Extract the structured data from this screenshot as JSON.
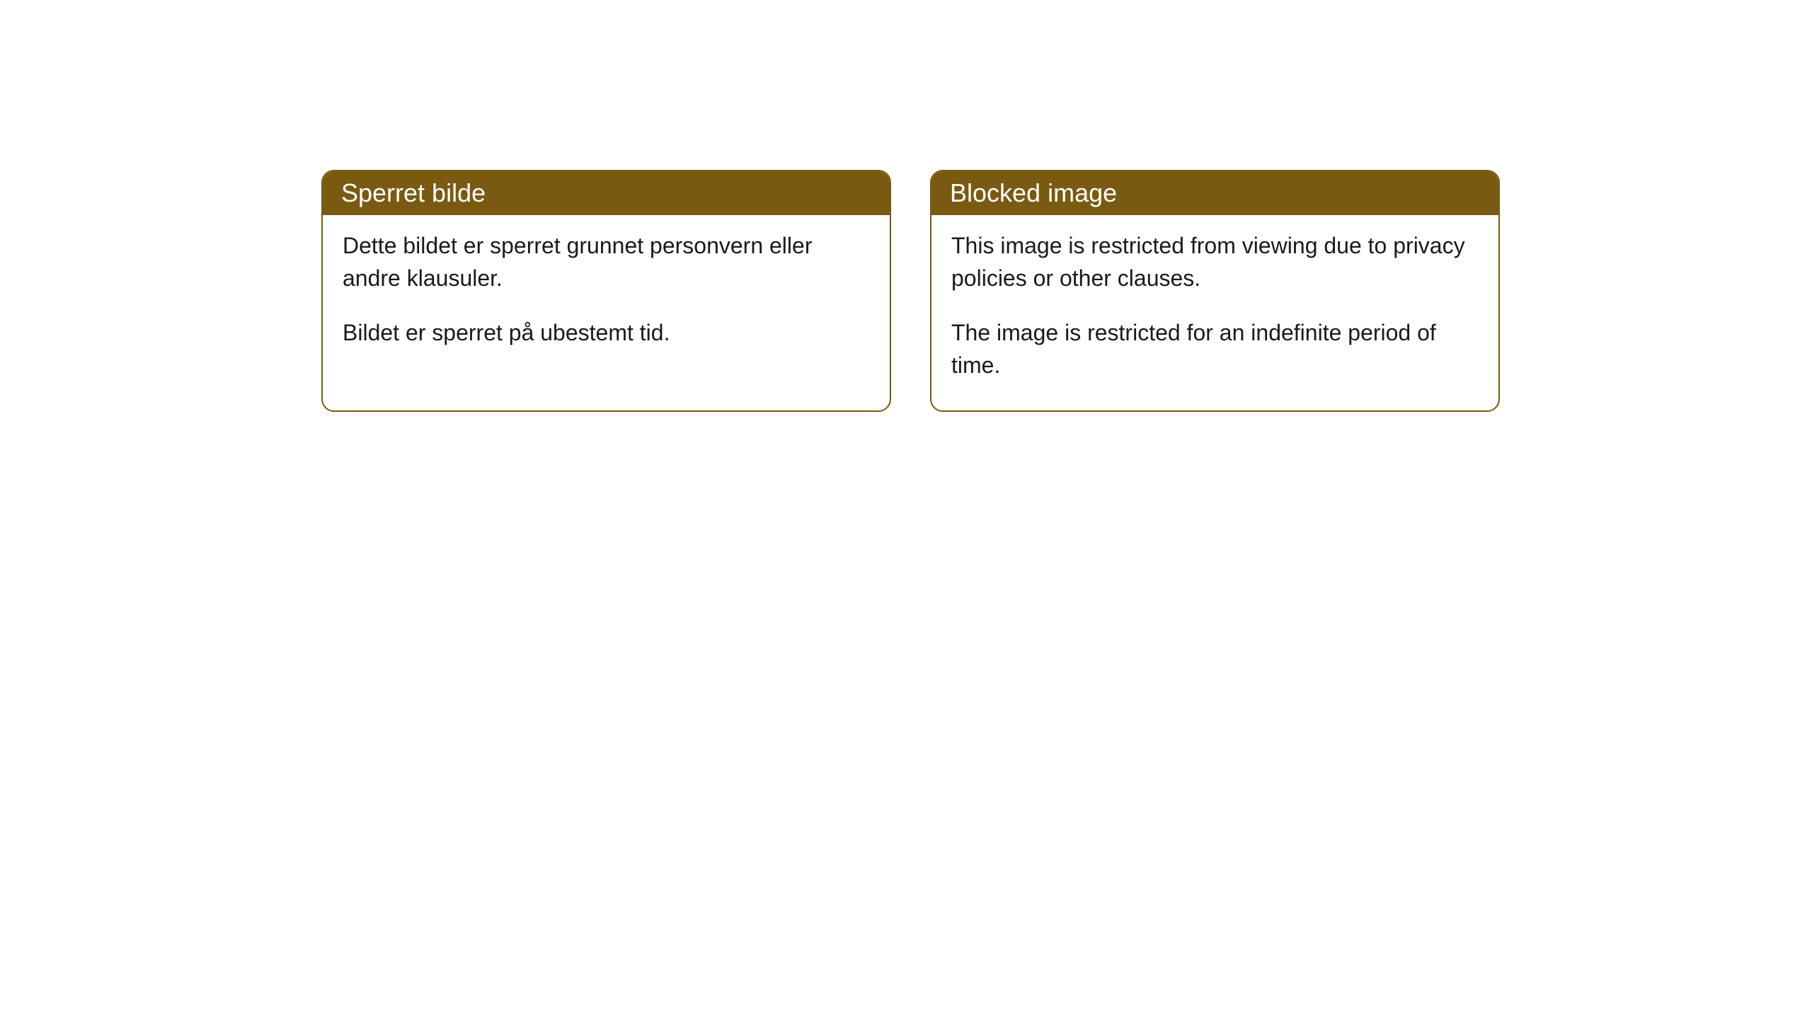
{
  "cards": [
    {
      "title": "Sperret bilde",
      "paragraph1": "Dette bildet er sperret grunnet personvern eller andre klausuler.",
      "paragraph2": "Bildet er sperret på ubestemt tid."
    },
    {
      "title": "Blocked image",
      "paragraph1": "This image is restricted from viewing due to privacy policies or other clauses.",
      "paragraph2": "The image is restricted for an indefinite period of time."
    }
  ],
  "styling": {
    "card_border_color": "#7a5a11",
    "card_header_bg": "#7a5a11",
    "card_header_text_color": "#ffffff",
    "card_body_bg": "#ffffff",
    "card_body_text_color": "#1a1a1a",
    "border_radius": 18,
    "header_fontsize": 36,
    "body_fontsize": 32
  }
}
